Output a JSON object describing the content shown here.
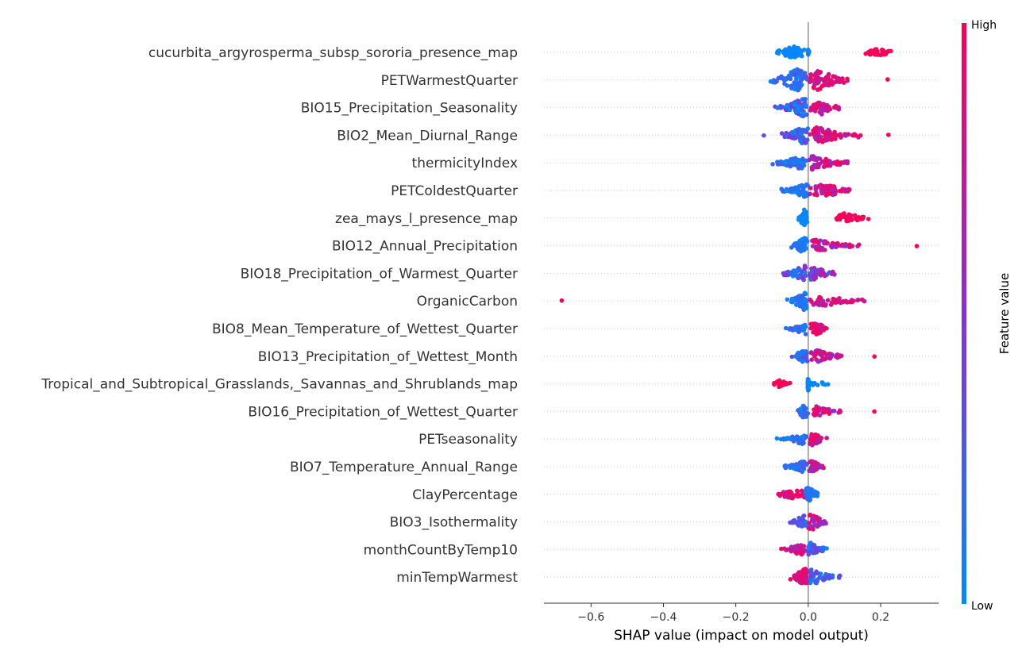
{
  "chart_data": {
    "type": "scatter",
    "subtype": "shap-beeswarm",
    "title": "",
    "xlabel": "SHAP value (impact on model output)",
    "ylabel": "",
    "xlim": [
      -0.73,
      0.36
    ],
    "xticks": [
      -0.6,
      -0.4,
      -0.2,
      0.0,
      0.2
    ],
    "xtick_labels": [
      "−0.6",
      "−0.4",
      "−0.2",
      "0.0",
      "0.2"
    ],
    "grid": "dotted horizontal row lines",
    "colorbar": {
      "title": "Feature value",
      "high_label": "High",
      "low_label": "Low",
      "low_color": "#008bfb",
      "mid_color": "#8a2fd6",
      "high_color": "#ff0052"
    },
    "features": [
      {
        "name": "cucurbita_argyrosperma_subsp_sororia_presence_map",
        "clusters": [
          {
            "lo": -0.09,
            "peak": -0.04,
            "hi": 0.0,
            "width": 0.5,
            "n": 60,
            "c0": 0.0,
            "c1": 0.05
          },
          {
            "lo": -0.002,
            "peak": 0.0,
            "hi": 0.003,
            "width": 0.25,
            "n": 8,
            "c0": 0.0,
            "c1": 0.1
          },
          {
            "lo": 0.14,
            "peak": 0.19,
            "hi": 0.25,
            "width": 0.3,
            "n": 40,
            "c0": 0.95,
            "c1": 1.0
          }
        ]
      },
      {
        "name": "PETWarmestQuarter",
        "clusters": [
          {
            "lo": -0.11,
            "peak": -0.03,
            "hi": 0.0,
            "width": 0.9,
            "n": 80,
            "c0": 0.0,
            "c1": 0.35
          },
          {
            "lo": 0.0,
            "peak": 0.02,
            "hi": 0.12,
            "width": 0.9,
            "n": 80,
            "c0": 0.65,
            "c1": 1.0
          },
          {
            "lo": 0.2,
            "peak": 0.22,
            "hi": 0.225,
            "width": 0.05,
            "n": 1,
            "c0": 1.0,
            "c1": 1.0
          }
        ]
      },
      {
        "name": "BIO15_Precipitation_Seasonality",
        "clusters": [
          {
            "lo": -0.1,
            "peak": -0.01,
            "hi": 0.0,
            "width": 0.8,
            "n": 70,
            "c0": 0.0,
            "c1": 0.5
          },
          {
            "lo": 0.0,
            "peak": 0.04,
            "hi": 0.09,
            "width": 0.6,
            "n": 45,
            "c0": 0.6,
            "c1": 1.0
          }
        ]
      },
      {
        "name": "BIO2_Mean_Diurnal_Range",
        "clusters": [
          {
            "lo": -0.08,
            "peak": -0.01,
            "hi": 0.0,
            "width": 0.8,
            "n": 60,
            "c0": 0.0,
            "c1": 0.5
          },
          {
            "lo": 0.0,
            "peak": 0.02,
            "hi": 0.15,
            "width": 0.7,
            "n": 70,
            "c0": 0.6,
            "c1": 1.0
          },
          {
            "lo": -0.13,
            "peak": -0.125,
            "hi": -0.12,
            "width": 0.05,
            "n": 1,
            "c0": 0.3,
            "c1": 0.3
          },
          {
            "lo": 0.215,
            "peak": 0.22,
            "hi": 0.225,
            "width": 0.05,
            "n": 1,
            "c0": 1.0,
            "c1": 1.0
          }
        ]
      },
      {
        "name": "thermicityIndex",
        "clusters": [
          {
            "lo": -0.11,
            "peak": -0.02,
            "hi": 0.0,
            "width": 0.5,
            "n": 70,
            "c0": 0.0,
            "c1": 0.3
          },
          {
            "lo": 0.0,
            "peak": 0.01,
            "hi": 0.13,
            "width": 0.6,
            "n": 60,
            "c0": 0.5,
            "c1": 1.0
          }
        ]
      },
      {
        "name": "PETColdestQuarter",
        "clusters": [
          {
            "lo": -0.08,
            "peak": -0.01,
            "hi": 0.0,
            "width": 0.6,
            "n": 55,
            "c0": 0.0,
            "c1": 0.2
          },
          {
            "lo": 0.0,
            "peak": 0.04,
            "hi": 0.13,
            "width": 0.55,
            "n": 55,
            "c0": 0.6,
            "c1": 1.0
          }
        ]
      },
      {
        "name": "zea_mays_l_presence_map",
        "clusters": [
          {
            "lo": -0.03,
            "peak": -0.01,
            "hi": 0.0,
            "width": 0.75,
            "n": 45,
            "c0": 0.0,
            "c1": 0.05
          },
          {
            "lo": 0.06,
            "peak": 0.1,
            "hi": 0.17,
            "width": 0.4,
            "n": 35,
            "c0": 0.95,
            "c1": 1.0
          }
        ]
      },
      {
        "name": "BIO12_Annual_Precipitation",
        "clusters": [
          {
            "lo": -0.05,
            "peak": -0.01,
            "hi": 0.0,
            "width": 0.7,
            "n": 50,
            "c0": 0.0,
            "c1": 0.2
          },
          {
            "lo": 0.0,
            "peak": 0.02,
            "hi": 0.16,
            "width": 0.5,
            "n": 55,
            "c0": 0.5,
            "c1": 1.0
          },
          {
            "lo": 0.29,
            "peak": 0.3,
            "hi": 0.305,
            "width": 0.05,
            "n": 1,
            "c0": 1.0,
            "c1": 1.0
          }
        ]
      },
      {
        "name": "BIO18_Precipitation_of_Warmest_Quarter",
        "clusters": [
          {
            "lo": -0.08,
            "peak": -0.01,
            "hi": 0.0,
            "width": 0.7,
            "n": 55,
            "c0": 0.0,
            "c1": 0.6
          },
          {
            "lo": 0.0,
            "peak": 0.01,
            "hi": 0.09,
            "width": 0.6,
            "n": 50,
            "c0": 0.2,
            "c1": 0.8
          }
        ]
      },
      {
        "name": "OrganicCarbon",
        "clusters": [
          {
            "lo": -0.06,
            "peak": -0.01,
            "hi": 0.0,
            "width": 0.8,
            "n": 55,
            "c0": 0.0,
            "c1": 0.25
          },
          {
            "lo": 0.0,
            "peak": 0.03,
            "hi": 0.19,
            "width": 0.45,
            "n": 50,
            "c0": 0.6,
            "c1": 1.0
          },
          {
            "lo": -0.685,
            "peak": -0.68,
            "hi": -0.675,
            "width": 0.05,
            "n": 1,
            "c0": 1.0,
            "c1": 1.0
          }
        ]
      },
      {
        "name": "BIO8_Mean_Temperature_of_Wettest_Quarter",
        "clusters": [
          {
            "lo": -0.07,
            "peak": -0.01,
            "hi": 0.0,
            "width": 0.5,
            "n": 35,
            "c0": 0.0,
            "c1": 0.3
          },
          {
            "lo": 0.0,
            "peak": 0.02,
            "hi": 0.06,
            "width": 0.55,
            "n": 40,
            "c0": 0.7,
            "c1": 1.0
          }
        ]
      },
      {
        "name": "BIO13_Precipitation_of_Wettest_Month",
        "clusters": [
          {
            "lo": -0.05,
            "peak": -0.01,
            "hi": 0.0,
            "width": 0.6,
            "n": 45,
            "c0": 0.0,
            "c1": 0.4
          },
          {
            "lo": 0.0,
            "peak": 0.02,
            "hi": 0.1,
            "width": 0.55,
            "n": 50,
            "c0": 0.5,
            "c1": 1.0
          },
          {
            "lo": 0.175,
            "peak": 0.18,
            "hi": 0.185,
            "width": 0.05,
            "n": 1,
            "c0": 1.0,
            "c1": 1.0
          }
        ]
      },
      {
        "name": "Tropical_and_Subtropical_Grasslands,_Savannas_and_Shrublands_map",
        "clusters": [
          {
            "lo": -0.1,
            "peak": -0.08,
            "hi": -0.05,
            "width": 0.3,
            "n": 25,
            "c0": 0.95,
            "c1": 1.0
          },
          {
            "lo": -0.002,
            "peak": 0.0,
            "hi": 0.002,
            "width": 0.7,
            "n": 30,
            "c0": 0.0,
            "c1": 0.05
          },
          {
            "lo": 0.0,
            "peak": 0.02,
            "hi": 0.065,
            "width": 0.2,
            "n": 12,
            "c0": 0.0,
            "c1": 0.05
          }
        ]
      },
      {
        "name": "BIO16_Precipitation_of_Wettest_Quarter",
        "clusters": [
          {
            "lo": -0.03,
            "peak": -0.01,
            "hi": 0.0,
            "width": 0.7,
            "n": 40,
            "c0": 0.0,
            "c1": 0.3
          },
          {
            "lo": 0.0,
            "peak": 0.02,
            "hi": 0.1,
            "width": 0.45,
            "n": 40,
            "c0": 0.5,
            "c1": 1.0
          },
          {
            "lo": 0.18,
            "peak": 0.185,
            "hi": 0.19,
            "width": 0.05,
            "n": 1,
            "c0": 1.0,
            "c1": 1.0
          }
        ]
      },
      {
        "name": "PETseasonality",
        "clusters": [
          {
            "lo": -0.1,
            "peak": -0.01,
            "hi": 0.0,
            "width": 0.45,
            "n": 40,
            "c0": 0.0,
            "c1": 0.3
          },
          {
            "lo": 0.0,
            "peak": 0.01,
            "hi": 0.055,
            "width": 0.6,
            "n": 45,
            "c0": 0.5,
            "c1": 1.0
          }
        ]
      },
      {
        "name": "BIO7_Temperature_Annual_Range",
        "clusters": [
          {
            "lo": -0.08,
            "peak": -0.01,
            "hi": 0.0,
            "width": 0.5,
            "n": 40,
            "c0": 0.0,
            "c1": 0.3
          },
          {
            "lo": 0.0,
            "peak": 0.01,
            "hi": 0.045,
            "width": 0.55,
            "n": 40,
            "c0": 0.5,
            "c1": 1.0
          }
        ]
      },
      {
        "name": "ClayPercentage",
        "clusters": [
          {
            "lo": -0.11,
            "peak": -0.03,
            "hi": 0.0,
            "width": 0.4,
            "n": 35,
            "c0": 0.75,
            "c1": 1.0
          },
          {
            "lo": -0.01,
            "peak": 0.0,
            "hi": 0.035,
            "width": 0.65,
            "n": 40,
            "c0": 0.0,
            "c1": 0.2
          }
        ]
      },
      {
        "name": "BIO3_Isothermality",
        "clusters": [
          {
            "lo": -0.055,
            "peak": -0.01,
            "hi": 0.0,
            "width": 0.6,
            "n": 40,
            "c0": 0.0,
            "c1": 0.4
          },
          {
            "lo": 0.0,
            "peak": 0.01,
            "hi": 0.055,
            "width": 0.7,
            "n": 50,
            "c0": 0.4,
            "c1": 1.0
          }
        ]
      },
      {
        "name": "monthCountByTemp10",
        "clusters": [
          {
            "lo": -0.08,
            "peak": -0.02,
            "hi": 0.0,
            "width": 0.45,
            "n": 35,
            "c0": 0.6,
            "c1": 1.0
          },
          {
            "lo": 0.0,
            "peak": 0.0,
            "hi": 0.055,
            "width": 0.7,
            "n": 45,
            "c0": 0.0,
            "c1": 0.4
          }
        ]
      },
      {
        "name": "minTempWarmest",
        "clusters": [
          {
            "lo": -0.05,
            "peak": -0.01,
            "hi": 0.0,
            "width": 0.8,
            "n": 55,
            "c0": 0.7,
            "c1": 1.0
          },
          {
            "lo": 0.0,
            "peak": 0.01,
            "hi": 0.095,
            "width": 0.65,
            "n": 50,
            "c0": 0.0,
            "c1": 0.45
          }
        ]
      }
    ]
  }
}
